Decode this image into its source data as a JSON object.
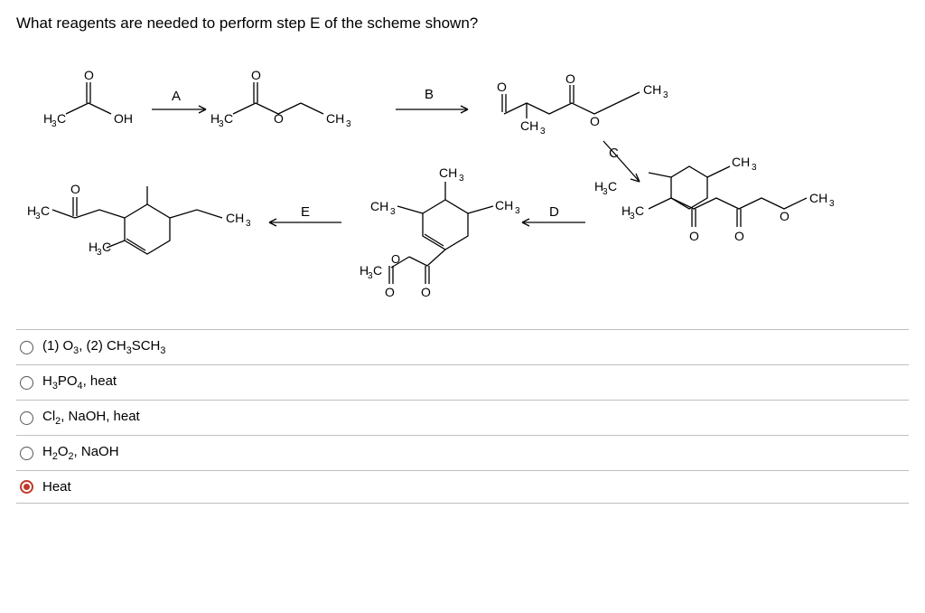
{
  "question": "What reagents are needed to perform step E of the scheme shown?",
  "scheme": {
    "labels": {
      "A": "A",
      "B": "B",
      "C": "C",
      "D": "D",
      "E": "E"
    },
    "text": {
      "CH3": "CH3",
      "H3C": "H3C",
      "OH": "OH",
      "O": "O"
    },
    "stroke": "#000000",
    "fontSize": 14,
    "subSize": 10
  },
  "options": [
    {
      "html": "(1) O<sub>3</sub>, (2) CH<sub>3</sub>SCH<sub>3</sub>",
      "selected": false
    },
    {
      "html": "H<sub>3</sub>PO<sub>4</sub>, heat",
      "selected": false
    },
    {
      "html": "Cl<sub>2</sub>, NaOH, heat",
      "selected": false
    },
    {
      "html": "H<sub>2</sub>O<sub>2</sub>, NaOH",
      "selected": false
    },
    {
      "html": "Heat",
      "selected": true
    }
  ]
}
